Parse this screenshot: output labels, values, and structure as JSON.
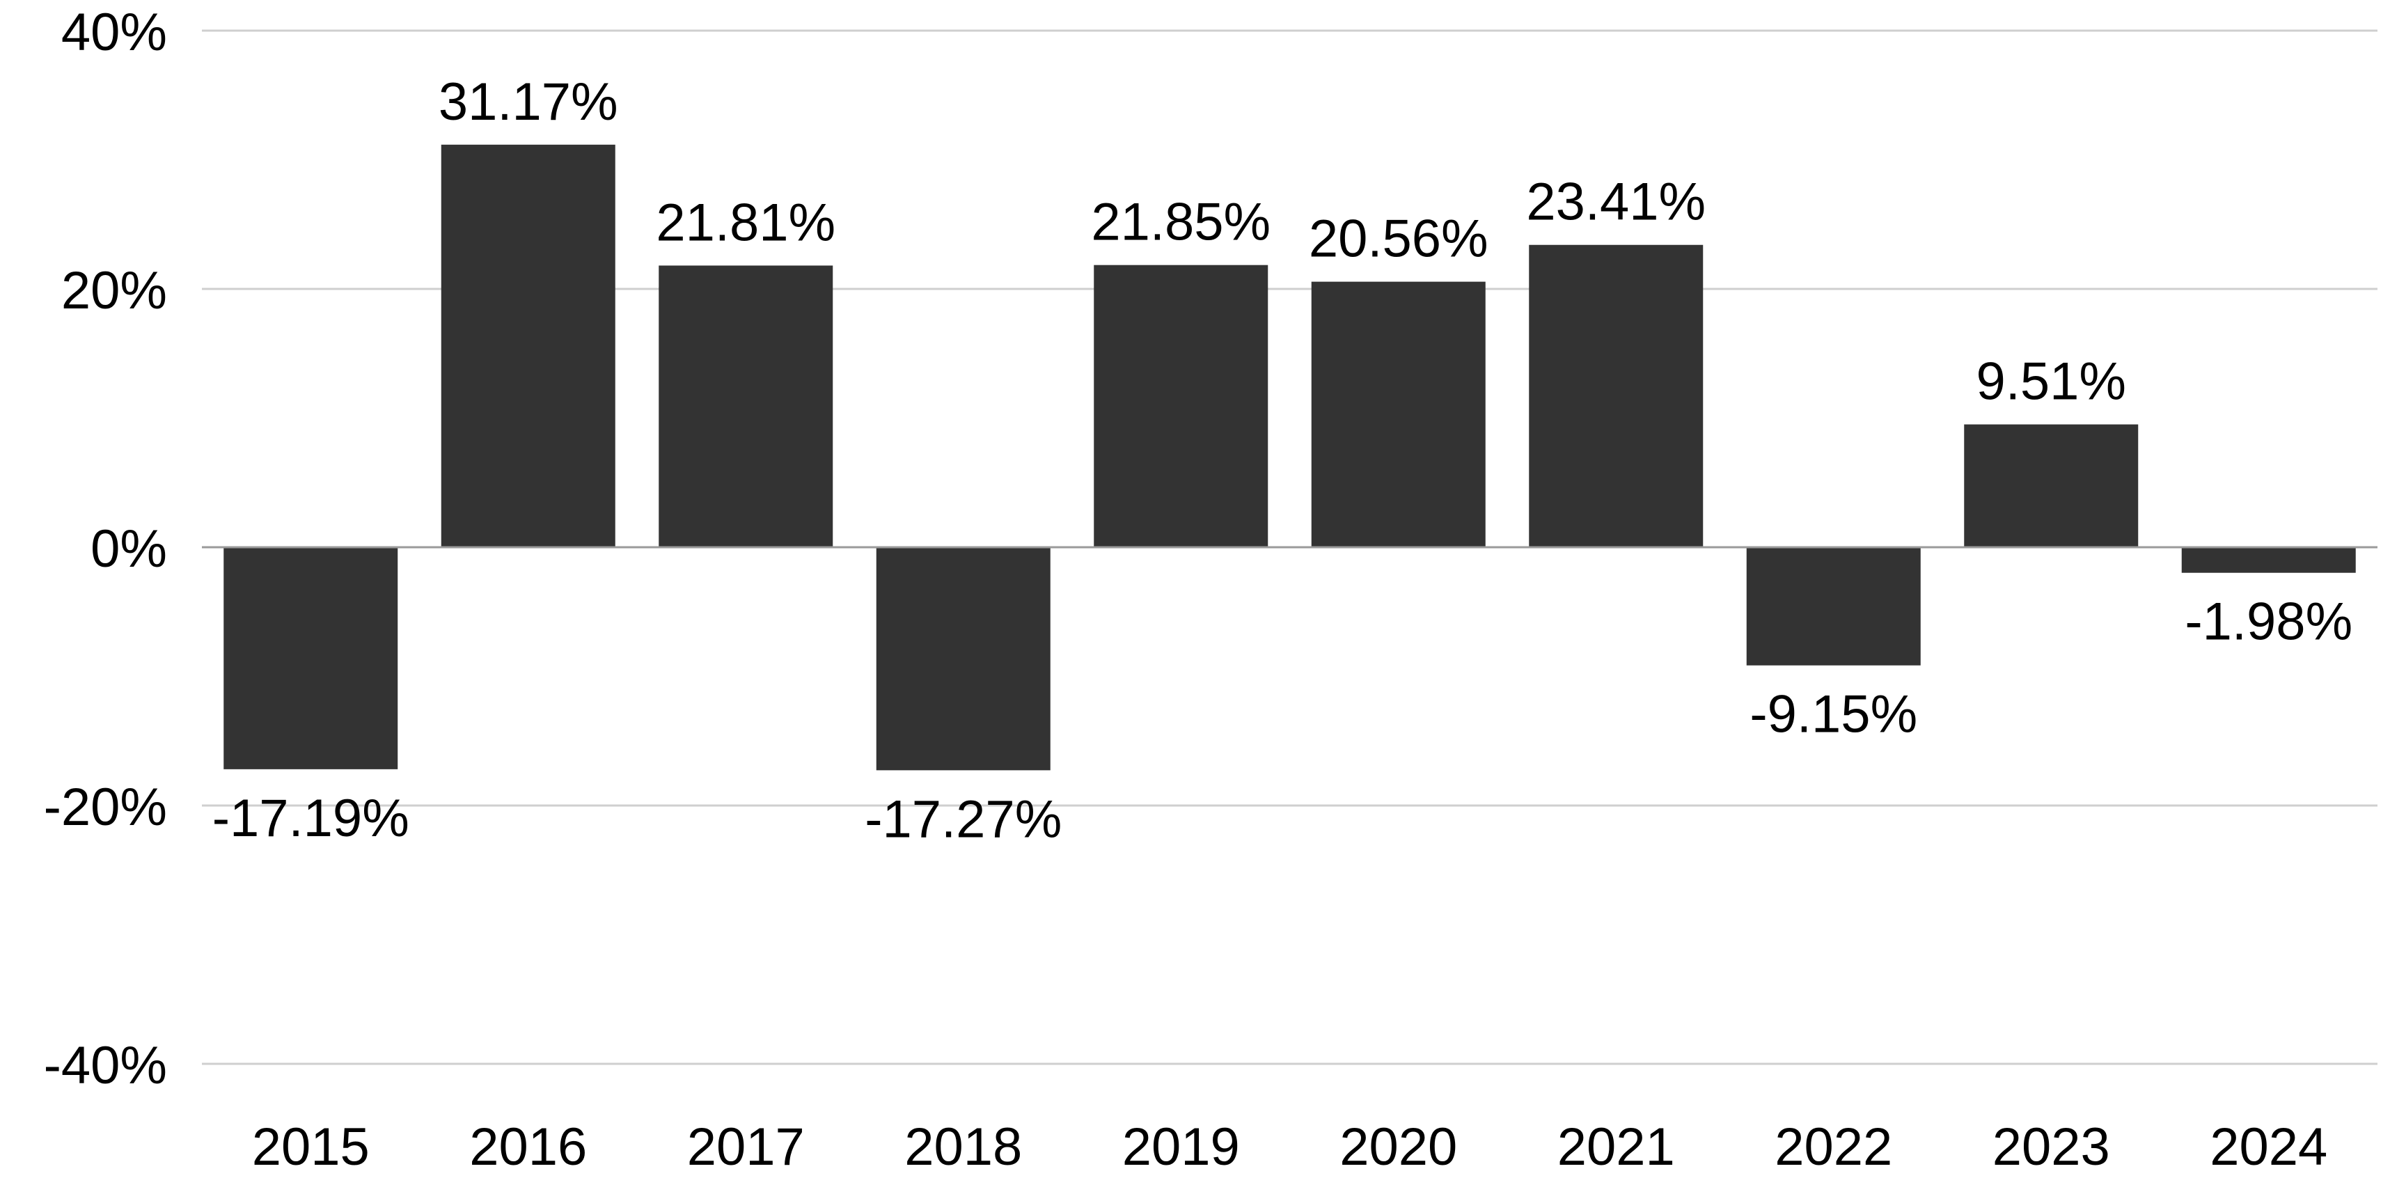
{
  "chart_data": {
    "type": "bar",
    "title": "",
    "xlabel": "",
    "ylabel": "",
    "categories": [
      "2015",
      "2016",
      "2017",
      "2018",
      "2019",
      "2020",
      "2021",
      "2022",
      "2023",
      "2024"
    ],
    "values": [
      -17.19,
      31.17,
      21.81,
      -17.27,
      21.85,
      20.56,
      23.41,
      -9.15,
      9.51,
      -1.98
    ],
    "data_labels": [
      "-17.19%",
      "31.17%",
      "21.81%",
      "-17.27%",
      "21.85%",
      "20.56%",
      "23.41%",
      "-9.15%",
      "9.51%",
      "-1.98%"
    ],
    "ylim": [
      -40,
      40
    ],
    "y_ticks": [
      40,
      20,
      0,
      -20,
      -40
    ],
    "y_tick_labels": [
      "40%",
      "20%",
      "0%",
      "-20%",
      "-40%"
    ],
    "grid": true,
    "legend": "none",
    "colors": {
      "bar": "#333333",
      "grid": "#cfcfcf",
      "zero_line": "#9a9a9a",
      "text": "#000000"
    }
  }
}
